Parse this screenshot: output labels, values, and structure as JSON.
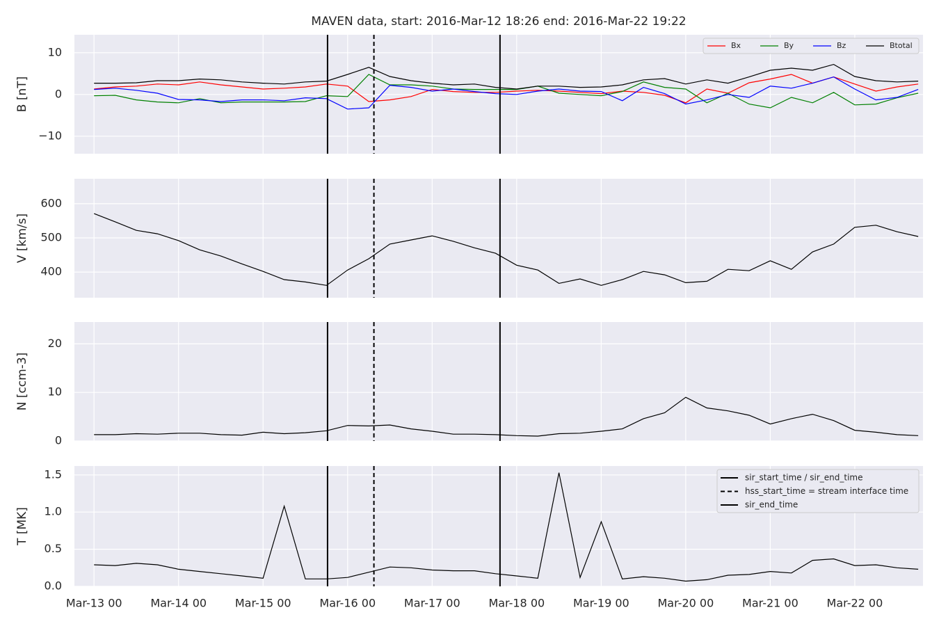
{
  "chart_data": [
    {
      "type": "line",
      "title": "MAVEN data, start: 2016-Mar-12 18:26  end: 2016-Mar-22 19:22",
      "ylabel": "B [nT]",
      "x": [
        "2016-03-13T00:00",
        "2016-03-13T06:00",
        "2016-03-13T12:00",
        "2016-03-13T18:00",
        "2016-03-14T00:00",
        "2016-03-14T06:00",
        "2016-03-14T12:00",
        "2016-03-14T18:00",
        "2016-03-15T00:00",
        "2016-03-15T06:00",
        "2016-03-15T12:00",
        "2016-03-15T18:00",
        "2016-03-16T00:00",
        "2016-03-16T06:00",
        "2016-03-16T12:00",
        "2016-03-16T18:00",
        "2016-03-17T00:00",
        "2016-03-17T06:00",
        "2016-03-17T12:00",
        "2016-03-17T18:00",
        "2016-03-18T00:00",
        "2016-03-18T06:00",
        "2016-03-18T12:00",
        "2016-03-18T18:00",
        "2016-03-19T00:00",
        "2016-03-19T06:00",
        "2016-03-19T12:00",
        "2016-03-19T18:00",
        "2016-03-20T00:00",
        "2016-03-20T06:00",
        "2016-03-20T12:00",
        "2016-03-20T18:00",
        "2016-03-21T00:00",
        "2016-03-21T06:00",
        "2016-03-21T12:00",
        "2016-03-21T18:00",
        "2016-03-22T00:00",
        "2016-03-22T06:00",
        "2016-03-22T12:00",
        "2016-03-22T18:00"
      ],
      "series": [
        {
          "name": "Bx",
          "color": "#ff0000",
          "values": [
            1.3,
            1.8,
            2,
            2.5,
            2.3,
            3,
            2.3,
            1.8,
            1.3,
            1.5,
            1.8,
            2.5,
            2,
            -1.7,
            -1.3,
            -0.5,
            1.2,
            0.7,
            0.5,
            0.5,
            0.8,
            1,
            0.8,
            0.5,
            0.2,
            0.8,
            0.5,
            -0.2,
            -2,
            1.3,
            0.3,
            2.8,
            3.7,
            4.8,
            2.7,
            4.2,
            2.5,
            0.8,
            1.8,
            2.5
          ]
        },
        {
          "name": "By",
          "color": "#008000",
          "values": [
            -0.3,
            -0.2,
            -1.3,
            -1.8,
            -2,
            -1,
            -2,
            -1.8,
            -1.8,
            -1.8,
            -1.7,
            -0.3,
            -0.5,
            4.8,
            2.3,
            2.3,
            2,
            1.3,
            1.2,
            1.2,
            1.2,
            2,
            0.3,
            0,
            -0.3,
            0.7,
            3,
            1.7,
            1.3,
            -2,
            0.3,
            -2.3,
            -3.2,
            -0.7,
            -2,
            0.5,
            -2.5,
            -2.3,
            -0.8,
            0.3
          ]
        },
        {
          "name": "Bz",
          "color": "#0000ff",
          "values": [
            1.2,
            1.5,
            1,
            0.3,
            -1.2,
            -1.3,
            -1.7,
            -1.3,
            -1.3,
            -1.5,
            -0.8,
            -1,
            -3.5,
            -3.2,
            2.2,
            1.7,
            0.8,
            1.3,
            0.7,
            0.2,
            0,
            0.8,
            1.3,
            0.8,
            0.7,
            -1.5,
            1.7,
            0.2,
            -2.3,
            -1.3,
            0,
            -0.7,
            2,
            1.5,
            2.7,
            4.2,
            1.3,
            -1.3,
            -0.7,
            1.2
          ]
        },
        {
          "name": "Btotal",
          "color": "#000000",
          "values": [
            2.7,
            2.7,
            2.8,
            3.3,
            3.3,
            3.7,
            3.5,
            3,
            2.7,
            2.5,
            3,
            3.2,
            4.8,
            6.5,
            4.3,
            3.3,
            2.7,
            2.3,
            2.5,
            1.7,
            1.3,
            2,
            2,
            1.7,
            1.8,
            2.3,
            3.5,
            3.8,
            2.5,
            3.5,
            2.7,
            4.2,
            5.8,
            6.3,
            5.8,
            7.2,
            4.3,
            3.3,
            3,
            3.2
          ]
        }
      ],
      "xlim": [
        "2016-03-12T18:26",
        "2016-03-22T19:22"
      ],
      "ylim": [
        -14.2,
        14.3
      ],
      "yticks": [
        {
          "value": -10,
          "label": "−10"
        },
        0,
        10
      ],
      "grid": true,
      "legend": "upper right",
      "vlines": [
        {
          "x": "2016-03-15T18:18",
          "style": "solid"
        },
        {
          "x": "2016-03-16T07:28",
          "style": "dashed"
        },
        {
          "x": "2016-03-17T19:16",
          "style": "solid"
        }
      ]
    },
    {
      "type": "line",
      "ylabel": "V [km/s]",
      "color": "#000000",
      "x": [
        "2016-03-13T00:00",
        "2016-03-13T06:00",
        "2016-03-13T12:00",
        "2016-03-13T18:00",
        "2016-03-14T00:00",
        "2016-03-14T06:00",
        "2016-03-14T12:00",
        "2016-03-14T18:00",
        "2016-03-15T00:00",
        "2016-03-15T06:00",
        "2016-03-15T12:00",
        "2016-03-15T18:00",
        "2016-03-16T00:00",
        "2016-03-16T06:00",
        "2016-03-16T12:00",
        "2016-03-16T18:00",
        "2016-03-17T00:00",
        "2016-03-17T06:00",
        "2016-03-17T12:00",
        "2016-03-17T18:00",
        "2016-03-18T00:00",
        "2016-03-18T06:00",
        "2016-03-18T12:00",
        "2016-03-18T18:00",
        "2016-03-19T00:00",
        "2016-03-19T06:00",
        "2016-03-19T12:00",
        "2016-03-19T18:00",
        "2016-03-20T00:00",
        "2016-03-20T06:00",
        "2016-03-20T12:00",
        "2016-03-20T18:00",
        "2016-03-21T00:00",
        "2016-03-21T06:00",
        "2016-03-21T12:00",
        "2016-03-21T18:00",
        "2016-03-22T00:00",
        "2016-03-22T06:00",
        "2016-03-22T12:00",
        "2016-03-22T18:00"
      ],
      "values": [
        571,
        547,
        522,
        512,
        492,
        465,
        447,
        424,
        402,
        378,
        371,
        361,
        406,
        439,
        482,
        494,
        506,
        490,
        471,
        455,
        420,
        406,
        367,
        380,
        361,
        378,
        402,
        392,
        369,
        373,
        408,
        404,
        433,
        408,
        459,
        482,
        531,
        537,
        518,
        504
      ],
      "xlim": [
        "2016-03-12T18:26",
        "2016-03-22T19:22"
      ],
      "ylim": [
        325,
        673
      ],
      "yticks": [
        400,
        500,
        600
      ],
      "grid": true,
      "vlines": [
        {
          "x": "2016-03-15T18:18",
          "style": "solid"
        },
        {
          "x": "2016-03-16T07:28",
          "style": "dashed"
        },
        {
          "x": "2016-03-17T19:16",
          "style": "solid"
        }
      ]
    },
    {
      "type": "line",
      "ylabel": "N [ccm-3]",
      "color": "#000000",
      "x": [
        "2016-03-13T00:00",
        "2016-03-13T06:00",
        "2016-03-13T12:00",
        "2016-03-13T18:00",
        "2016-03-14T00:00",
        "2016-03-14T06:00",
        "2016-03-14T12:00",
        "2016-03-14T18:00",
        "2016-03-15T00:00",
        "2016-03-15T06:00",
        "2016-03-15T12:00",
        "2016-03-15T18:00",
        "2016-03-16T00:00",
        "2016-03-16T06:00",
        "2016-03-16T12:00",
        "2016-03-16T18:00",
        "2016-03-17T00:00",
        "2016-03-17T06:00",
        "2016-03-17T12:00",
        "2016-03-17T18:00",
        "2016-03-18T00:00",
        "2016-03-18T06:00",
        "2016-03-18T12:00",
        "2016-03-18T18:00",
        "2016-03-19T00:00",
        "2016-03-19T06:00",
        "2016-03-19T12:00",
        "2016-03-19T18:00",
        "2016-03-20T00:00",
        "2016-03-20T06:00",
        "2016-03-20T12:00",
        "2016-03-20T18:00",
        "2016-03-21T00:00",
        "2016-03-21T06:00",
        "2016-03-21T12:00",
        "2016-03-21T18:00",
        "2016-03-22T00:00",
        "2016-03-22T06:00",
        "2016-03-22T12:00",
        "2016-03-22T18:00"
      ],
      "values": [
        1.3,
        1.3,
        1.5,
        1.4,
        1.6,
        1.6,
        1.3,
        1.2,
        1.8,
        1.5,
        1.7,
        2.1,
        3.2,
        3.1,
        3.3,
        2.5,
        2,
        1.4,
        1.4,
        1.3,
        1.1,
        1,
        1.5,
        1.6,
        2,
        2.5,
        4.6,
        5.8,
        9,
        6.8,
        6.2,
        5.3,
        3.5,
        4.6,
        5.5,
        4.2,
        2.2,
        1.8,
        1.3,
        1.1
      ],
      "xlim": [
        "2016-03-12T18:26",
        "2016-03-22T19:22"
      ],
      "ylim": [
        0,
        24.5
      ],
      "yticks": [
        0,
        10,
        20
      ],
      "grid": true,
      "vlines": [
        {
          "x": "2016-03-15T18:18",
          "style": "solid"
        },
        {
          "x": "2016-03-16T07:28",
          "style": "dashed"
        },
        {
          "x": "2016-03-17T19:16",
          "style": "solid"
        }
      ]
    },
    {
      "type": "line",
      "ylabel": "T [MK]",
      "color": "#000000",
      "x": [
        "2016-03-13T00:00",
        "2016-03-13T06:00",
        "2016-03-13T12:00",
        "2016-03-13T18:00",
        "2016-03-14T00:00",
        "2016-03-14T06:00",
        "2016-03-14T12:00",
        "2016-03-14T18:00",
        "2016-03-15T00:00",
        "2016-03-15T06:00",
        "2016-03-15T12:00",
        "2016-03-15T18:00",
        "2016-03-16T00:00",
        "2016-03-16T06:00",
        "2016-03-16T12:00",
        "2016-03-16T18:00",
        "2016-03-17T00:00",
        "2016-03-17T06:00",
        "2016-03-17T12:00",
        "2016-03-17T18:00",
        "2016-03-18T00:00",
        "2016-03-18T06:00",
        "2016-03-18T12:00",
        "2016-03-18T18:00",
        "2016-03-19T00:00",
        "2016-03-19T06:00",
        "2016-03-19T12:00",
        "2016-03-19T18:00",
        "2016-03-20T00:00",
        "2016-03-20T06:00",
        "2016-03-20T12:00",
        "2016-03-20T18:00",
        "2016-03-21T00:00",
        "2016-03-21T06:00",
        "2016-03-21T12:00",
        "2016-03-21T18:00",
        "2016-03-22T00:00",
        "2016-03-22T06:00",
        "2016-03-22T12:00",
        "2016-03-22T18:00"
      ],
      "values": [
        0.29,
        0.28,
        0.31,
        0.29,
        0.23,
        0.2,
        0.17,
        0.14,
        0.11,
        1.08,
        0.1,
        0.1,
        0.12,
        0.19,
        0.26,
        0.25,
        0.22,
        0.21,
        0.21,
        0.17,
        0.14,
        0.11,
        1.53,
        0.12,
        0.87,
        0.1,
        0.13,
        0.11,
        0.07,
        0.09,
        0.15,
        0.16,
        0.2,
        0.18,
        0.35,
        0.37,
        0.28,
        0.29,
        0.25,
        0.23
      ],
      "xlim": [
        "2016-03-12T18:26",
        "2016-03-22T19:22"
      ],
      "ylim": [
        0,
        1.62
      ],
      "yticks": [
        {
          "value": 0,
          "label": "0.0"
        },
        0.5,
        {
          "value": 1,
          "label": "1.0"
        },
        1.5
      ],
      "grid": true,
      "xticks": [
        {
          "value": "2016-03-13T00:00",
          "label": "Mar-13 00"
        },
        {
          "value": "2016-03-14T00:00",
          "label": "Mar-14 00"
        },
        {
          "value": "2016-03-15T00:00",
          "label": "Mar-15 00"
        },
        {
          "value": "2016-03-16T00:00",
          "label": "Mar-16 00"
        },
        {
          "value": "2016-03-17T00:00",
          "label": "Mar-17 00"
        },
        {
          "value": "2016-03-18T00:00",
          "label": "Mar-18 00"
        },
        {
          "value": "2016-03-19T00:00",
          "label": "Mar-19 00"
        },
        {
          "value": "2016-03-20T00:00",
          "label": "Mar-20 00"
        },
        {
          "value": "2016-03-21T00:00",
          "label": "Mar-21 00"
        },
        {
          "value": "2016-03-22T00:00",
          "label": "Mar-22 00"
        }
      ],
      "vlines": [
        {
          "x": "2016-03-15T18:18",
          "style": "solid"
        },
        {
          "x": "2016-03-16T07:28",
          "style": "dashed"
        },
        {
          "x": "2016-03-17T19:16",
          "style": "solid"
        }
      ],
      "legend": "upper right",
      "vline_legend": [
        {
          "name": "sir_start_time / sir_end_time",
          "style": "solid"
        },
        {
          "name": "hss_start_time = stream interface time",
          "style": "dashed"
        },
        {
          "name": "sir_end_time",
          "style": "solid"
        }
      ]
    }
  ]
}
